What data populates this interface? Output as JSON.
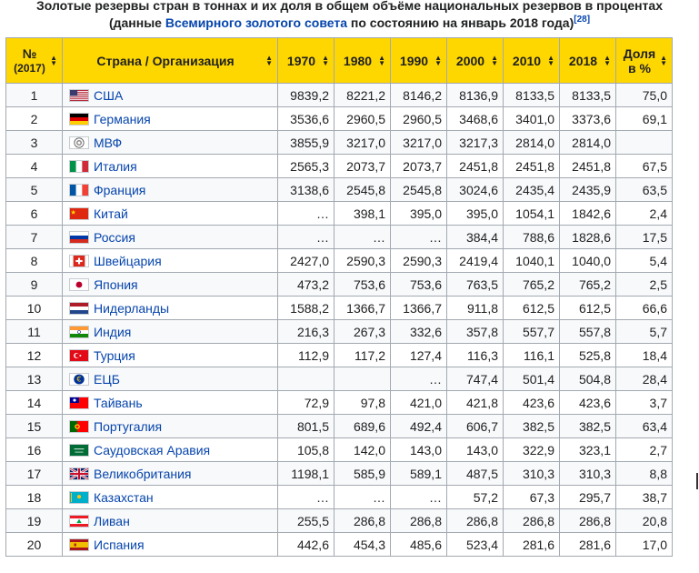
{
  "caption": {
    "line1": "Золотые резервы стран в тоннах и их доля в общем объёме национальных резервов в процентах",
    "line2_prefix": "(данные ",
    "line2_link": "Всемирного золотого совета",
    "line2_suffix": " по состоянию на январь 2018 года)",
    "ref": "[28]"
  },
  "headers": {
    "rank": "№",
    "rank_sub": "(2017)",
    "country": "Страна / Организация",
    "y1970": "1970",
    "y1980": "1980",
    "y1990": "1990",
    "y2000": "2000",
    "y2010": "2010",
    "y2018": "2018",
    "share1": "Доля",
    "share2": "в %"
  },
  "colors": {
    "header_bg": "#ffd700",
    "link": "#0645ad",
    "border": "#a2a9b1"
  },
  "rows": [
    {
      "rank": "1",
      "country": "США",
      "flag": "usa-flag-icon",
      "v1970": "9839,2",
      "v1980": "8221,2",
      "v1990": "8146,2",
      "v2000": "8136,9",
      "v2010": "8133,5",
      "v2018": "8133,5",
      "share": "75,0"
    },
    {
      "rank": "2",
      "country": "Германия",
      "flag": "germany-flag-icon",
      "v1970": "3536,6",
      "v1980": "2960,5",
      "v1990": "2960,5",
      "v2000": "3468,6",
      "v2010": "3401,0",
      "v2018": "3373,6",
      "share": "69,1"
    },
    {
      "rank": "3",
      "country": "МВФ",
      "flag": "imf-logo-icon",
      "v1970": "3855,9",
      "v1980": "3217,0",
      "v1990": "3217,0",
      "v2000": "3217,3",
      "v2010": "2814,0",
      "v2018": "2814,0",
      "share": ""
    },
    {
      "rank": "4",
      "country": "Италия",
      "flag": "italy-flag-icon",
      "v1970": "2565,3",
      "v1980": "2073,7",
      "v1990": "2073,7",
      "v2000": "2451,8",
      "v2010": "2451,8",
      "v2018": "2451,8",
      "share": "67,5"
    },
    {
      "rank": "5",
      "country": "Франция",
      "flag": "france-flag-icon",
      "v1970": "3138,6",
      "v1980": "2545,8",
      "v1990": "2545,8",
      "v2000": "3024,6",
      "v2010": "2435,4",
      "v2018": "2435,9",
      "share": "63,5"
    },
    {
      "rank": "6",
      "country": "Китай",
      "flag": "china-flag-icon",
      "v1970": "…",
      "v1980": "398,1",
      "v1990": "395,0",
      "v2000": "395,0",
      "v2010": "1054,1",
      "v2018": "1842,6",
      "share": "2,4"
    },
    {
      "rank": "7",
      "country": "Россия",
      "flag": "russia-flag-icon",
      "v1970": "…",
      "v1980": "…",
      "v1990": "…",
      "v2000": "384,4",
      "v2010": "788,6",
      "v2018": "1828,6",
      "share": "17,5"
    },
    {
      "rank": "8",
      "country": "Швейцария",
      "flag": "switzerland-flag-icon",
      "v1970": "2427,0",
      "v1980": "2590,3",
      "v1990": "2590,3",
      "v2000": "2419,4",
      "v2010": "1040,1",
      "v2018": "1040,0",
      "share": "5,4"
    },
    {
      "rank": "9",
      "country": "Япония",
      "flag": "japan-flag-icon",
      "v1970": "473,2",
      "v1980": "753,6",
      "v1990": "753,6",
      "v2000": "763,5",
      "v2010": "765,2",
      "v2018": "765,2",
      "share": "2,5"
    },
    {
      "rank": "10",
      "country": "Нидерланды",
      "flag": "netherlands-flag-icon",
      "v1970": "1588,2",
      "v1980": "1366,7",
      "v1990": "1366,7",
      "v2000": "911,8",
      "v2010": "612,5",
      "v2018": "612,5",
      "share": "66,6"
    },
    {
      "rank": "11",
      "country": "Индия",
      "flag": "india-flag-icon",
      "v1970": "216,3",
      "v1980": "267,3",
      "v1990": "332,6",
      "v2000": "357,8",
      "v2010": "557,7",
      "v2018": "557,8",
      "share": "5,7"
    },
    {
      "rank": "12",
      "country": "Турция",
      "flag": "turkey-flag-icon",
      "v1970": "112,9",
      "v1980": "117,2",
      "v1990": "127,4",
      "v2000": "116,3",
      "v2010": "116,1",
      "v2018": "525,8",
      "share": "18,4"
    },
    {
      "rank": "13",
      "country": "ЕЦБ",
      "flag": "ecb-logo-icon",
      "v1970": "",
      "v1980": "",
      "v1990": "…",
      "v2000": "747,4",
      "v2010": "501,4",
      "v2018": "504,8",
      "share": "28,4"
    },
    {
      "rank": "14",
      "country": "Тайвань",
      "flag": "taiwan-flag-icon",
      "v1970": "72,9",
      "v1980": "97,8",
      "v1990": "421,0",
      "v2000": "421,8",
      "v2010": "423,6",
      "v2018": "423,6",
      "share": "3,7"
    },
    {
      "rank": "15",
      "country": "Португалия",
      "flag": "portugal-flag-icon",
      "v1970": "801,5",
      "v1980": "689,6",
      "v1990": "492,4",
      "v2000": "606,7",
      "v2010": "382,5",
      "v2018": "382,5",
      "share": "63,4"
    },
    {
      "rank": "16",
      "country": "Саудовская Аравия",
      "flag": "saudi-arabia-flag-icon",
      "v1970": "105,8",
      "v1980": "142,0",
      "v1990": "143,0",
      "v2000": "143,0",
      "v2010": "322,9",
      "v2018": "323,1",
      "share": "2,7"
    },
    {
      "rank": "17",
      "country": "Великобритания",
      "flag": "uk-flag-icon",
      "v1970": "1198,1",
      "v1980": "585,9",
      "v1990": "589,1",
      "v2000": "487,5",
      "v2010": "310,3",
      "v2018": "310,3",
      "share": "8,8"
    },
    {
      "rank": "18",
      "country": "Казахстан",
      "flag": "kazakhstan-flag-icon",
      "v1970": "…",
      "v1980": "…",
      "v1990": "…",
      "v2000": "57,2",
      "v2010": "67,3",
      "v2018": "295,7",
      "share": "38,7"
    },
    {
      "rank": "19",
      "country": "Ливан",
      "flag": "lebanon-flag-icon",
      "v1970": "255,5",
      "v1980": "286,8",
      "v1990": "286,8",
      "v2000": "286,8",
      "v2010": "286,8",
      "v2018": "286,8",
      "share": "20,8"
    },
    {
      "rank": "20",
      "country": "Испания",
      "flag": "spain-flag-icon",
      "v1970": "442,6",
      "v1980": "454,3",
      "v1990": "485,6",
      "v2000": "523,4",
      "v2010": "281,6",
      "v2018": "281,6",
      "share": "17,0"
    }
  ]
}
